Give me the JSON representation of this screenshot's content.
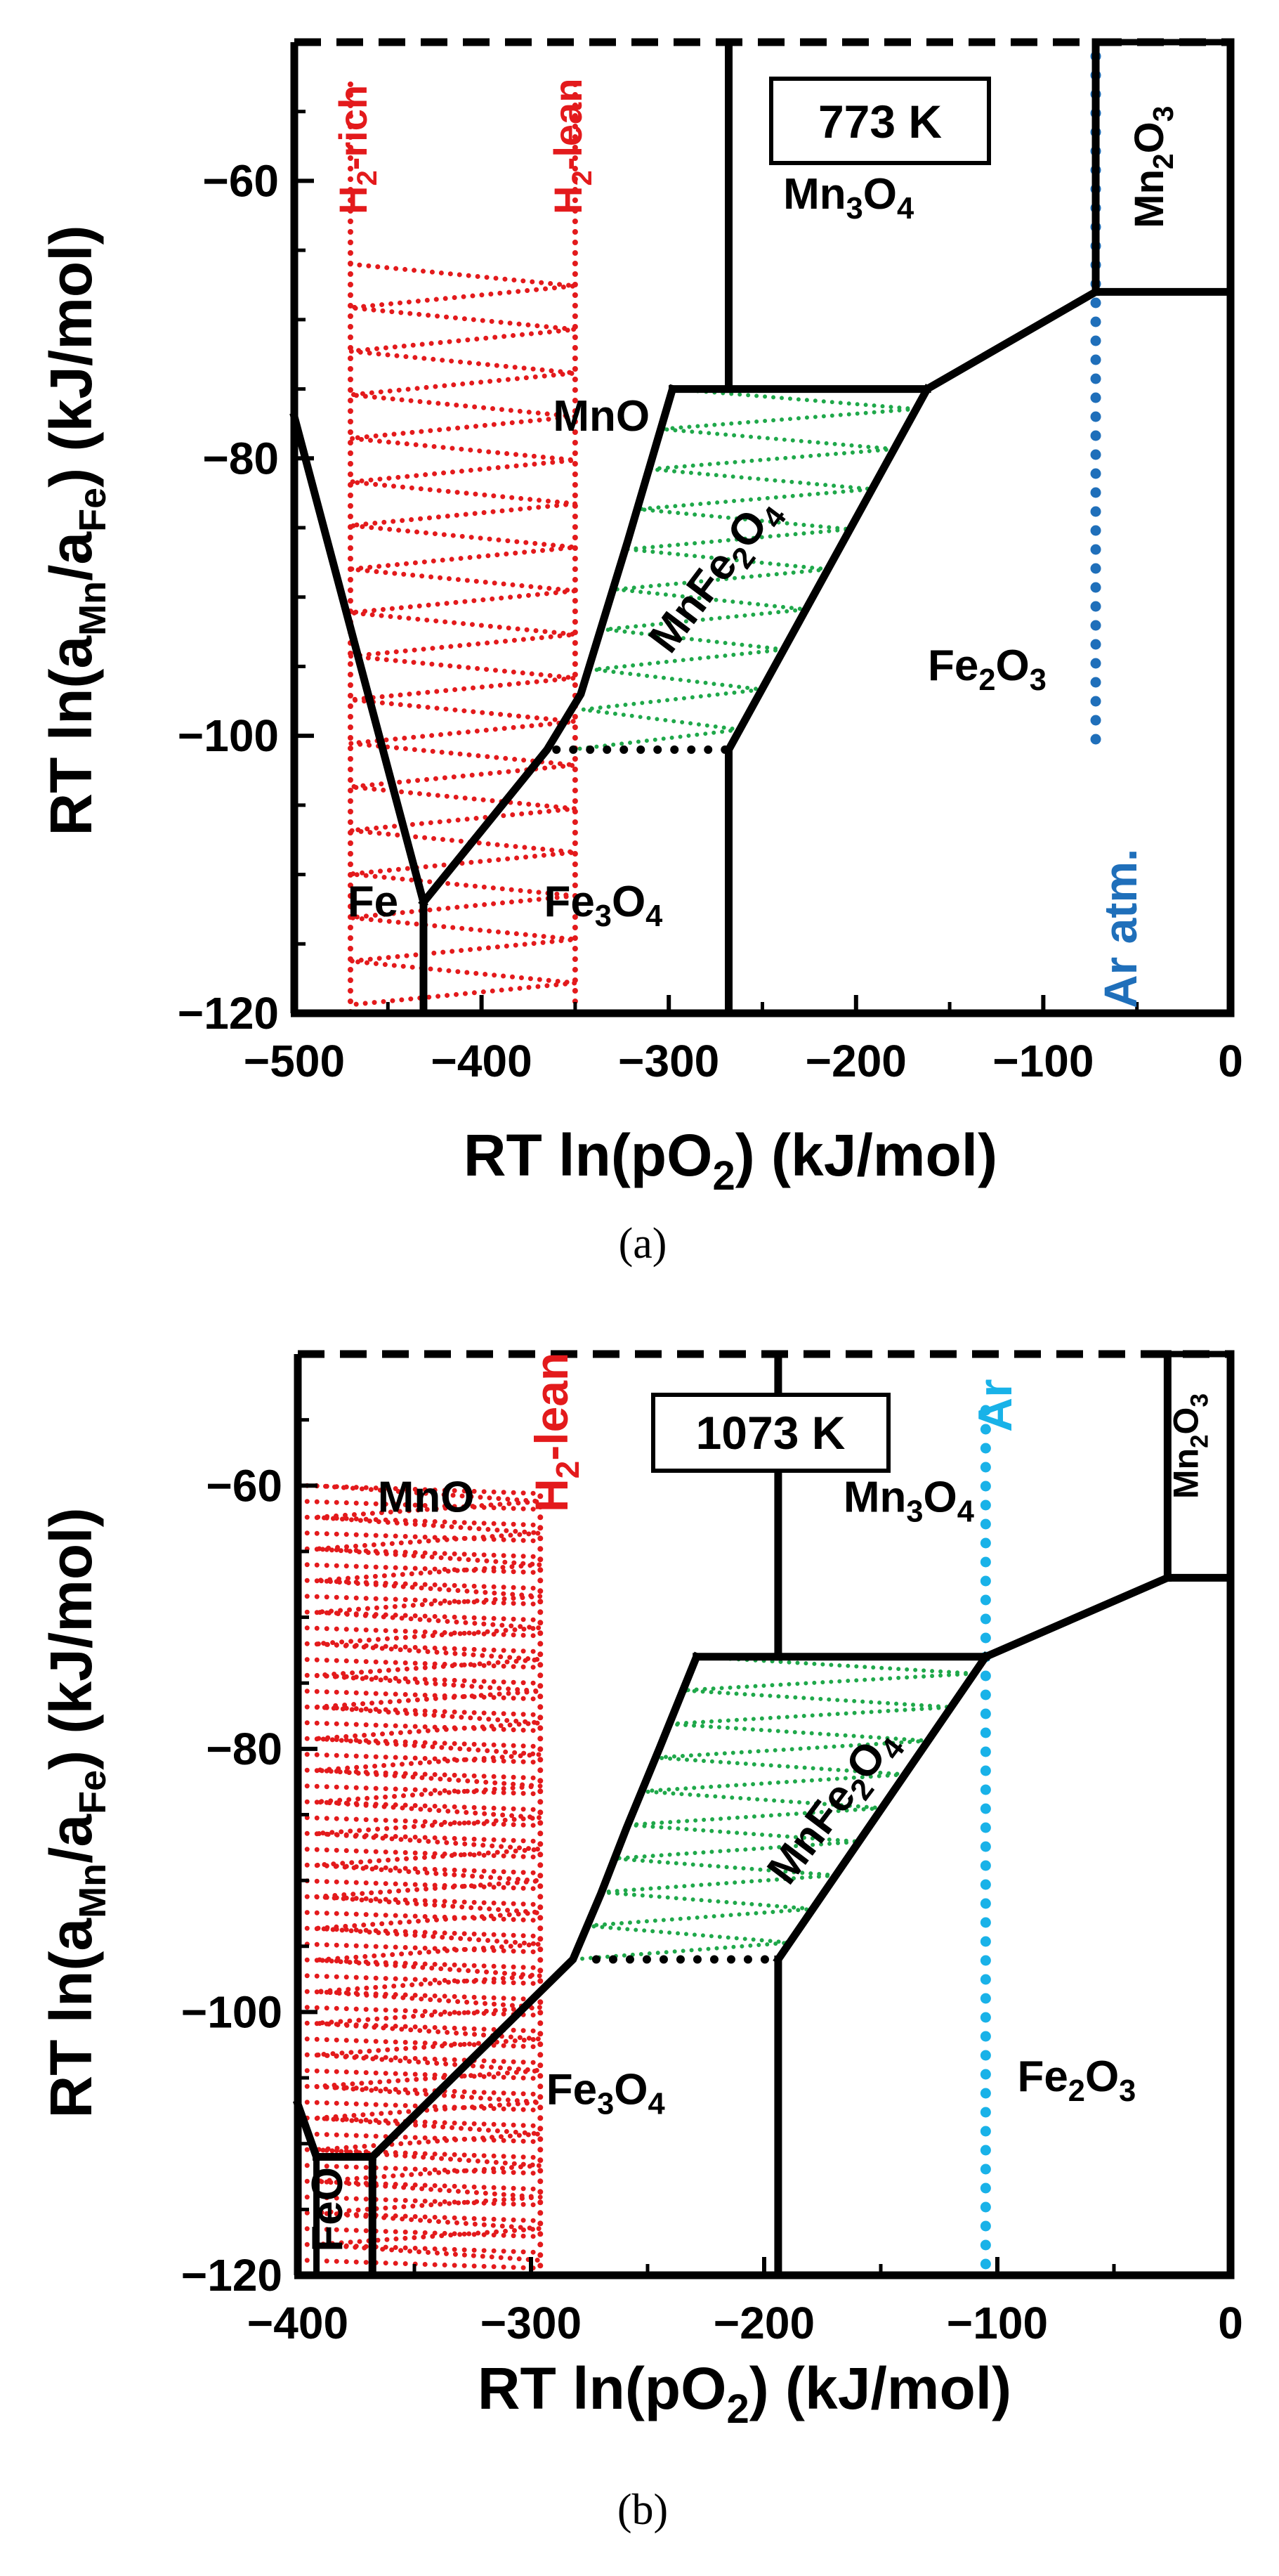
{
  "chart_data": [
    {
      "id": "a",
      "type": "scatter",
      "subtype": "predominance-area-diagram",
      "caption": "(a)",
      "temperature_label": "773 K",
      "xlabel": {
        "main": "RT ln(pO",
        "sub": "2",
        "tail": ") (kJ/mol)"
      },
      "ylabel": {
        "p1": "RT ln(a",
        "s1": "Mn",
        "p2": "/a",
        "s2": "Fe",
        "p3": ") (kJ/mol)"
      },
      "xlim": [
        -500,
        0
      ],
      "ylim": [
        -120,
        -50
      ],
      "x_ticks": [
        -500,
        -400,
        -300,
        -200,
        -100,
        0
      ],
      "x_tick_labels": [
        "−500",
        "−400",
        "−300",
        "−200",
        "−100",
        "0"
      ],
      "y_ticks": [
        -60,
        -80,
        -100,
        -120
      ],
      "y_tick_labels": [
        "−60",
        "−80",
        "−100",
        "−120"
      ],
      "grid": false,
      "boundaries": [
        {
          "name": "MnO/Fe line",
          "points": [
            [
              -500,
              -77
            ],
            [
              -431,
              -112
            ]
          ]
        },
        {
          "name": "Fe/Fe3O4 line",
          "points": [
            [
              -431,
              -112
            ],
            [
              -365,
              -101
            ],
            [
              -347,
              -97
            ],
            [
              -322,
              -86
            ],
            [
              -298,
              -75
            ]
          ]
        },
        {
          "name": "Fe vertical",
          "points": [
            [
              -431,
              -112
            ],
            [
              -431,
              -120
            ]
          ]
        },
        {
          "name": "Mn3O4/MnO vertical",
          "points": [
            [
              -268,
              -50
            ],
            [
              -268,
              -75
            ]
          ]
        },
        {
          "name": "MnFe2O4 top edge",
          "points": [
            [
              -298,
              -75
            ],
            [
              -162,
              -75
            ]
          ]
        },
        {
          "name": "Fe2O3 upper boundary",
          "points": [
            [
              -162,
              -75
            ],
            [
              -72,
              -68
            ],
            [
              0,
              -68
            ]
          ]
        },
        {
          "name": "MnFe2O4/Fe2O3 edge",
          "points": [
            [
              -162,
              -75
            ],
            [
              -268,
              -101
            ]
          ]
        },
        {
          "name": "Fe3O4/Fe2O3 vertical",
          "points": [
            [
              -268,
              -101
            ],
            [
              -268,
              -120
            ]
          ]
        },
        {
          "name": "Mn2O3 boundary",
          "points": [
            [
              -72,
              -50
            ],
            [
              -72,
              -68
            ]
          ]
        },
        {
          "name": "frame right",
          "points": [
            [
              0,
              -50
            ],
            [
              0,
              -120
            ]
          ]
        }
      ],
      "dotted_segment": {
        "points": [
          [
            -360,
            -101
          ],
          [
            -268,
            -101
          ]
        ]
      },
      "hatch_red": {
        "x_range": [
          -470,
          -350
        ],
        "y_range": [
          -120,
          -66
        ],
        "columns": [
          -470,
          -350
        ]
      },
      "hatch_green": {
        "polygon": [
          [
            -298,
            -75
          ],
          [
            -162,
            -75
          ],
          [
            -268,
            -101
          ],
          [
            -352,
            -101
          ]
        ]
      },
      "ar_line_x": -72,
      "regions": [
        {
          "label": "MnO",
          "x": -336,
          "y": -78
        },
        {
          "label": "Mn",
          "label_sub": "3",
          "label_mid": "O",
          "label_sub2": "4",
          "x": -204,
          "y": -62
        },
        {
          "label": "Fe",
          "label_sub": "2",
          "label_mid": "O",
          "label_sub2": "3",
          "x": -130,
          "y": -96
        },
        {
          "label": "Fe",
          "label_sub": "3",
          "label_mid": "O",
          "label_sub2": "4",
          "x": -335,
          "y": -113
        },
        {
          "label": "Fe",
          "x": -458,
          "y": -113
        },
        {
          "label": "MnFe",
          "label_sub": "2",
          "label_mid": "O",
          "label_sub2": "4",
          "x": -270,
          "y": -89,
          "rotate": -53
        },
        {
          "label": "Mn",
          "label_sub": "2",
          "label_mid": "O",
          "label_sub2": "3",
          "x": -36,
          "y": -59,
          "rotate": -90
        }
      ],
      "annotations": [
        {
          "text": "H",
          "sub": "2",
          "tail": "-rich",
          "color": "#e31a1c"
        },
        {
          "text": "H",
          "sub": "2",
          "tail": "-lean",
          "color": "#e31a1c"
        },
        {
          "text": "Ar atm.",
          "color": "#1f6fba"
        }
      ]
    },
    {
      "id": "b",
      "type": "scatter",
      "subtype": "predominance-area-diagram",
      "caption": "(b)",
      "temperature_label": "1073 K",
      "xlabel": {
        "main": "RT ln(pO",
        "sub": "2",
        "tail": ") (kJ/mol)"
      },
      "ylabel": {
        "p1": "RT ln(a",
        "s1": "Mn",
        "p2": "/a",
        "s2": "Fe",
        "p3": ") (kJ/mol)"
      },
      "xlim": [
        -400,
        0
      ],
      "ylim": [
        -120,
        -50
      ],
      "x_ticks": [
        -400,
        -300,
        -200,
        -100,
        0
      ],
      "x_tick_labels": [
        "−400",
        "−300",
        "−200",
        "−100",
        "0"
      ],
      "y_ticks": [
        -60,
        -80,
        -100,
        -120
      ],
      "y_tick_labels": [
        "−60",
        "−80",
        "−100",
        "−120"
      ],
      "grid": false,
      "boundaries": [
        {
          "name": "FeO/Fe3O4 line",
          "points": [
            [
              -368,
              -111
            ],
            [
              -282,
              -96
            ],
            [
              -270,
              -91
            ],
            [
              -259,
              -86
            ],
            [
              -245,
              -80
            ],
            [
              -229,
              -73
            ]
          ]
        },
        {
          "name": "MnO/FeO line",
          "points": [
            [
              -400,
              -107
            ],
            [
              -392,
              -111
            ]
          ]
        },
        {
          "name": "FeO box top",
          "points": [
            [
              -392,
              -111
            ],
            [
              -368,
              -111
            ]
          ]
        },
        {
          "name": "FeO box right",
          "points": [
            [
              -368,
              -111
            ],
            [
              -368,
              -120
            ]
          ]
        },
        {
          "name": "Mn3O4/MnO vertical",
          "points": [
            [
              -194,
              -50
            ],
            [
              -194,
              -73
            ]
          ]
        },
        {
          "name": "MnFe2O4 top edge",
          "points": [
            [
              -229,
              -73
            ],
            [
              -105,
              -73
            ]
          ]
        },
        {
          "name": "Fe2O3 upper boundary",
          "points": [
            [
              -105,
              -73
            ],
            [
              -27,
              -67
            ],
            [
              0,
              -67
            ]
          ]
        },
        {
          "name": "MnFe2O4/Fe2O3 edge",
          "points": [
            [
              -105,
              -73
            ],
            [
              -194,
              -96
            ]
          ]
        },
        {
          "name": "Fe3O4/Fe2O3 vertical",
          "points": [
            [
              -194,
              -96
            ],
            [
              -194,
              -120
            ]
          ]
        },
        {
          "name": "Mn2O3 boundary",
          "points": [
            [
              -27,
              -50
            ],
            [
              -27,
              -67
            ]
          ]
        },
        {
          "name": "frame right",
          "points": [
            [
              0,
              -50
            ],
            [
              0,
              -120
            ]
          ]
        }
      ],
      "dotted_segment": {
        "points": [
          [
            -272,
            -96
          ],
          [
            -194,
            -96
          ]
        ]
      },
      "hatch_red": {
        "x_range": [
          -392,
          -296
        ],
        "y_range": [
          -120,
          -60
        ],
        "columns": [
          -296
        ]
      },
      "hatch_green": {
        "polygon": [
          [
            -229,
            -73
          ],
          [
            -105,
            -73
          ],
          [
            -194,
            -96
          ],
          [
            -282,
            -96
          ]
        ]
      },
      "ar_line_x": -105,
      "regions": [
        {
          "label": "MnO",
          "x": -345,
          "y": -62
        },
        {
          "label": "Mn",
          "label_sub": "3",
          "label_mid": "O",
          "label_sub2": "4",
          "x": -138,
          "y": -62
        },
        {
          "label": "Fe",
          "label_sub": "2",
          "label_mid": "O",
          "label_sub2": "3",
          "x": -66,
          "y": -106
        },
        {
          "label": "Fe",
          "label_sub": "3",
          "label_mid": "O",
          "label_sub2": "4",
          "x": -268,
          "y": -107
        },
        {
          "label": "FeO",
          "x": -381,
          "y": -115,
          "rotate": -90
        },
        {
          "label": "MnFe",
          "label_sub": "2",
          "label_mid": "O",
          "label_sub2": "4",
          "x": -166,
          "y": -85,
          "rotate": -53
        },
        {
          "label": "Mn",
          "label_sub": "2",
          "label_mid": "O",
          "label_sub2": "3",
          "x": -14,
          "y": -57,
          "rotate": -90
        }
      ],
      "annotations": [
        {
          "text": "H",
          "sub": "2",
          "tail": "-lean",
          "color": "#e31a1c"
        },
        {
          "text": "Ar",
          "color": "#19b2e8"
        }
      ]
    }
  ]
}
